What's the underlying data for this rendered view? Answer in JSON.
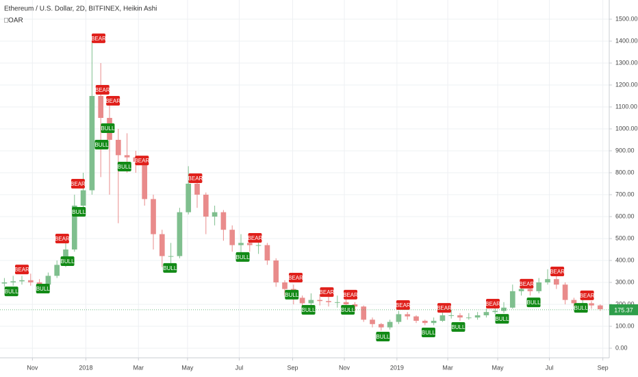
{
  "chart_data": {
    "type": "candlestick",
    "title": "Ethereum / U.S. Dollar, 2D, BITFINEX, Heikin Ashi",
    "subtitle": "□OAR",
    "up_color": "#7fbf8e",
    "down_color": "#e98b8b",
    "open": [
      295,
      300,
      305,
      310,
      300,
      290,
      330,
      380,
      450,
      650,
      720,
      1150,
      1050,
      950,
      880,
      870,
      850,
      680,
      520,
      420,
      420,
      620,
      750,
      700,
      600,
      620,
      540,
      470,
      480,
      470,
      470,
      400,
      300,
      270,
      230,
      205,
      220,
      215,
      210,
      210,
      200,
      190,
      130,
      110,
      95,
      120,
      155,
      145,
      125,
      115,
      125,
      150,
      150,
      140,
      140,
      150,
      165,
      170,
      185,
      260,
      270,
      260,
      300,
      315,
      290,
      220,
      205,
      205,
      195
    ],
    "high": [
      320,
      330,
      330,
      340,
      315,
      345,
      400,
      490,
      700,
      800,
      1400,
      1300,
      1150,
      1000,
      980,
      900,
      860,
      700,
      540,
      480,
      640,
      830,
      780,
      710,
      650,
      630,
      560,
      520,
      510,
      500,
      480,
      410,
      310,
      290,
      240,
      250,
      245,
      235,
      240,
      225,
      210,
      195,
      140,
      115,
      130,
      170,
      165,
      150,
      130,
      140,
      170,
      175,
      160,
      160,
      165,
      180,
      200,
      210,
      290,
      300,
      290,
      320,
      360,
      330,
      300,
      230,
      225,
      215,
      200
    ],
    "low": [
      280,
      285,
      290,
      285,
      270,
      280,
      320,
      370,
      440,
      600,
      700,
      780,
      700,
      570,
      800,
      800,
      650,
      450,
      370,
      360,
      410,
      610,
      640,
      520,
      560,
      490,
      440,
      430,
      440,
      430,
      380,
      280,
      240,
      200,
      180,
      190,
      195,
      190,
      185,
      180,
      170,
      120,
      95,
      80,
      85,
      110,
      130,
      115,
      105,
      105,
      120,
      135,
      125,
      130,
      130,
      140,
      155,
      160,
      180,
      240,
      240,
      250,
      290,
      270,
      200,
      190,
      185,
      180,
      170
    ],
    "close": [
      300,
      305,
      310,
      300,
      290,
      330,
      380,
      450,
      650,
      720,
      1150,
      1050,
      950,
      880,
      870,
      850,
      680,
      520,
      420,
      420,
      620,
      750,
      700,
      600,
      620,
      540,
      470,
      480,
      470,
      470,
      400,
      300,
      270,
      230,
      205,
      220,
      215,
      210,
      210,
      200,
      190,
      130,
      110,
      95,
      120,
      155,
      145,
      125,
      115,
      125,
      150,
      150,
      140,
      140,
      150,
      165,
      170,
      185,
      260,
      270,
      260,
      300,
      315,
      290,
      220,
      205,
      205,
      195,
      178
    ],
    "xlim": [
      0,
      69.53
    ],
    "ylim": [
      -43.75,
      1587.5
    ],
    "xticks": [
      {
        "value": 3.7,
        "label": "Nov"
      },
      {
        "value": 9.8,
        "label": "2018"
      },
      {
        "value": 15.8,
        "label": "Mar"
      },
      {
        "value": 21.4,
        "label": "May"
      },
      {
        "value": 27.3,
        "label": "Jul"
      },
      {
        "value": 33.4,
        "label": "Sep"
      },
      {
        "value": 39.3,
        "label": "Nov"
      },
      {
        "value": 45.3,
        "label": "2019"
      },
      {
        "value": 51.1,
        "label": "Mar"
      },
      {
        "value": 56.8,
        "label": "May"
      },
      {
        "value": 62.7,
        "label": "Jul"
      },
      {
        "value": 68.8,
        "label": "Sep"
      }
    ],
    "yticks": [
      {
        "value": 0,
        "label": "0.00"
      },
      {
        "value": 100,
        "label": "100.00"
      },
      {
        "value": 200,
        "label": "200.00"
      },
      {
        "value": 300,
        "label": "300.00"
      },
      {
        "value": 400,
        "label": "400.00"
      },
      {
        "value": 500,
        "label": "500.00"
      },
      {
        "value": 600,
        "label": "600.00"
      },
      {
        "value": 700,
        "label": "700.00"
      },
      {
        "value": 800,
        "label": "800.00"
      },
      {
        "value": 900,
        "label": "900.00"
      },
      {
        "value": 1000,
        "label": "1000.00"
      },
      {
        "value": 1100,
        "label": "1100.00"
      },
      {
        "value": 1200,
        "label": "1200.00"
      },
      {
        "value": 1300,
        "label": "1300.00"
      },
      {
        "value": 1400,
        "label": "1400.00"
      },
      {
        "value": 1500,
        "label": "1500.00"
      }
    ],
    "grid": true,
    "last_price": 175.37,
    "last_price_color": "#2e9e4a",
    "annotations": [
      {
        "text": "BEAR",
        "x": 2.5,
        "y": 359
      },
      {
        "text": "BEAR",
        "x": 11.25,
        "y": 1413
      },
      {
        "text": "BEAR",
        "x": 11.7,
        "y": 1178
      },
      {
        "text": "BEAR",
        "x": 12.9,
        "y": 1128
      },
      {
        "text": "BEAR",
        "x": 8.9,
        "y": 750
      },
      {
        "text": "BEAR",
        "x": 7.1,
        "y": 500
      },
      {
        "text": "BEAR",
        "x": 16.2,
        "y": 856
      },
      {
        "text": "BEAR",
        "x": 22.3,
        "y": 775
      },
      {
        "text": "BEAR",
        "x": 29.1,
        "y": 503
      },
      {
        "text": "BEAR",
        "x": 33.75,
        "y": 322
      },
      {
        "text": "BEAR",
        "x": 37.3,
        "y": 256
      },
      {
        "text": "BEAR",
        "x": 40,
        "y": 244
      },
      {
        "text": "BEAR",
        "x": 46,
        "y": 197
      },
      {
        "text": "BEAR",
        "x": 50.7,
        "y": 184
      },
      {
        "text": "BEAR",
        "x": 56.25,
        "y": 203
      },
      {
        "text": "BEAR",
        "x": 60.1,
        "y": 294
      },
      {
        "text": "BEAR",
        "x": 63.6,
        "y": 350
      },
      {
        "text": "BEAR",
        "x": 67,
        "y": 241
      },
      {
        "text": "BULL",
        "x": 1.3,
        "y": 259
      },
      {
        "text": "BULL",
        "x": 4.9,
        "y": 272
      },
      {
        "text": "BULL",
        "x": 7.7,
        "y": 397
      },
      {
        "text": "BULL",
        "x": 9,
        "y": 622
      },
      {
        "text": "BULL",
        "x": 11.6,
        "y": 928
      },
      {
        "text": "BULL",
        "x": 12.3,
        "y": 1003
      },
      {
        "text": "BULL",
        "x": 14.2,
        "y": 828
      },
      {
        "text": "BULL",
        "x": 19.4,
        "y": 366
      },
      {
        "text": "BULL",
        "x": 27.7,
        "y": 416
      },
      {
        "text": "BULL",
        "x": 33.3,
        "y": 244
      },
      {
        "text": "BULL",
        "x": 35.2,
        "y": 175
      },
      {
        "text": "BULL",
        "x": 39.7,
        "y": 175
      },
      {
        "text": "BULL",
        "x": 43.7,
        "y": 53
      },
      {
        "text": "BULL",
        "x": 48.9,
        "y": 72
      },
      {
        "text": "BULL",
        "x": 52.3,
        "y": 97
      },
      {
        "text": "BULL",
        "x": 57.3,
        "y": 134
      },
      {
        "text": "BULL",
        "x": 60.9,
        "y": 209
      },
      {
        "text": "BULL",
        "x": 66.3,
        "y": 184
      }
    ],
    "bear_color": "#e0201b",
    "bull_color": "#128a16"
  }
}
